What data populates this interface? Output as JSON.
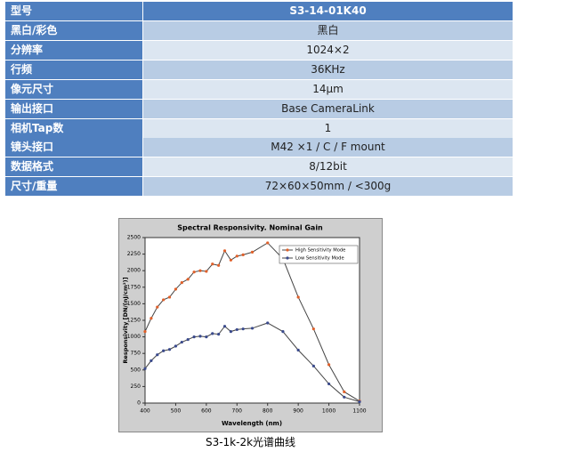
{
  "table": {
    "header": [
      "型号",
      "S3-14-01K40"
    ],
    "rows": [
      [
        "黑白/彩色",
        "黑白"
      ],
      [
        "分辨率",
        "1024×2"
      ],
      [
        "行频",
        "36KHz"
      ],
      [
        "像元尺寸",
        "14μm"
      ],
      [
        "输出接口",
        "Base CameraLink"
      ],
      [
        "相机Tap数",
        "1"
      ],
      [
        "镜头接口",
        "M42 ×1 / C / F mount"
      ],
      [
        "数据格式",
        "8/12bit"
      ],
      [
        "尺寸/重量",
        "72×60×50mm / <300g"
      ]
    ]
  },
  "chart_data": {
    "type": "line",
    "title": "Spectral Responsivity. Nominal Gain",
    "x_label": "Wavelength (nm)",
    "y_label": "Responsivity [DN/(nJ/cm²)]",
    "x": [
      400,
      420,
      440,
      460,
      480,
      500,
      520,
      540,
      560,
      580,
      600,
      620,
      640,
      660,
      680,
      700,
      720,
      750,
      800,
      850,
      900,
      950,
      1000,
      1050,
      1100
    ],
    "series": [
      {
        "name": "High Sensitivity Mode",
        "color": "#e0602a",
        "values": [
          1080,
          1280,
          1450,
          1560,
          1600,
          1720,
          1820,
          1870,
          1980,
          2000,
          1990,
          2100,
          2080,
          2300,
          2160,
          2220,
          2240,
          2280,
          2420,
          2180,
          1600,
          1120,
          580,
          170,
          30
        ]
      },
      {
        "name": "Low Sensitivity Mode",
        "color": "#3a4a8c",
        "values": [
          520,
          640,
          730,
          790,
          810,
          860,
          920,
          960,
          1000,
          1010,
          1000,
          1050,
          1040,
          1160,
          1080,
          1110,
          1120,
          1130,
          1210,
          1080,
          800,
          560,
          290,
          90,
          20
        ]
      }
    ],
    "line_color": "#444444",
    "xlim": [
      400,
      1100
    ],
    "xticks": [
      400,
      500,
      600,
      700,
      800,
      900,
      1000,
      1100
    ],
    "ylim": [
      0,
      2500
    ],
    "yticks": [
      0,
      250,
      500,
      750,
      1000,
      1250,
      1500,
      1750,
      2000,
      2250,
      2500
    ],
    "legend": "top-right"
  },
  "caption": "S3-1k-2k光谱曲线"
}
